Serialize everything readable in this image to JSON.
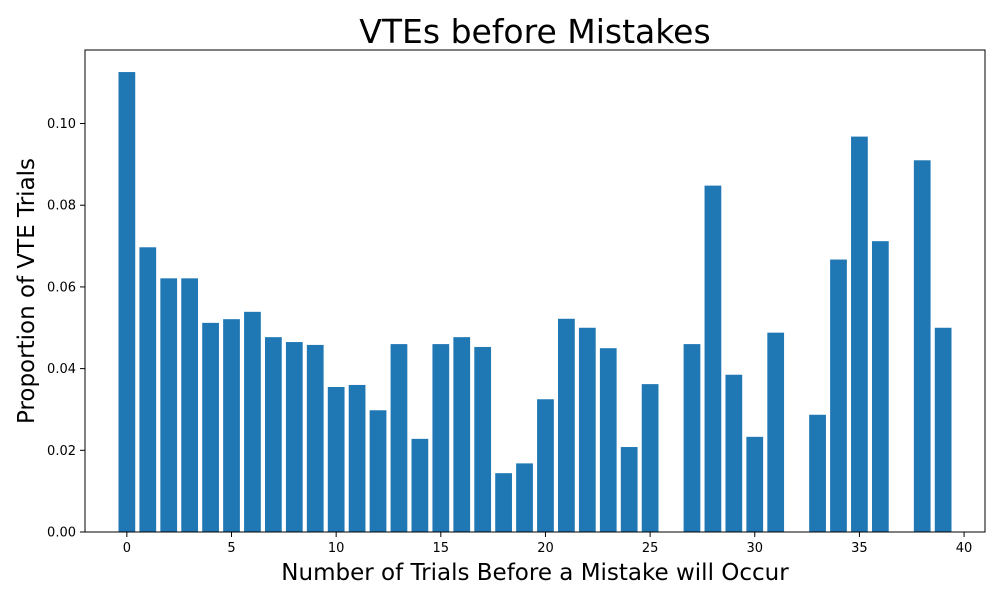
{
  "chart_data": {
    "type": "bar",
    "title": "VTEs before Mistakes",
    "xlabel": "Number of Trials Before a Mistake will Occur",
    "ylabel": "Proportion of VTE Trials",
    "bar_color": "#1f77b4",
    "xlim": [
      -2,
      41
    ],
    "ylim": [
      0,
      0.118
    ],
    "xticks": [
      0,
      5,
      10,
      15,
      20,
      25,
      30,
      35,
      40
    ],
    "yticks": [
      0.0,
      0.02,
      0.04,
      0.06,
      0.08,
      0.1
    ],
    "x": [
      0,
      1,
      2,
      3,
      4,
      5,
      6,
      7,
      8,
      9,
      10,
      11,
      12,
      13,
      14,
      15,
      16,
      17,
      18,
      19,
      20,
      21,
      22,
      23,
      24,
      25,
      26,
      27,
      28,
      29,
      30,
      31,
      32,
      33,
      34,
      35,
      36,
      37,
      38,
      39
    ],
    "values": [
      0.1126,
      0.0697,
      0.0621,
      0.0621,
      0.0512,
      0.0521,
      0.0539,
      0.0477,
      0.0465,
      0.0458,
      0.0355,
      0.036,
      0.0298,
      0.046,
      0.0228,
      0.046,
      0.0477,
      0.0453,
      0.0144,
      0.0168,
      0.0325,
      0.0522,
      0.05,
      0.045,
      0.0208,
      0.0362,
      0.0,
      0.046,
      0.0848,
      0.0385,
      0.0233,
      0.0488,
      0.0,
      0.0287,
      0.0667,
      0.0968,
      0.0712,
      0.0,
      0.091,
      0.05
    ],
    "grid": false,
    "legend": "none"
  }
}
